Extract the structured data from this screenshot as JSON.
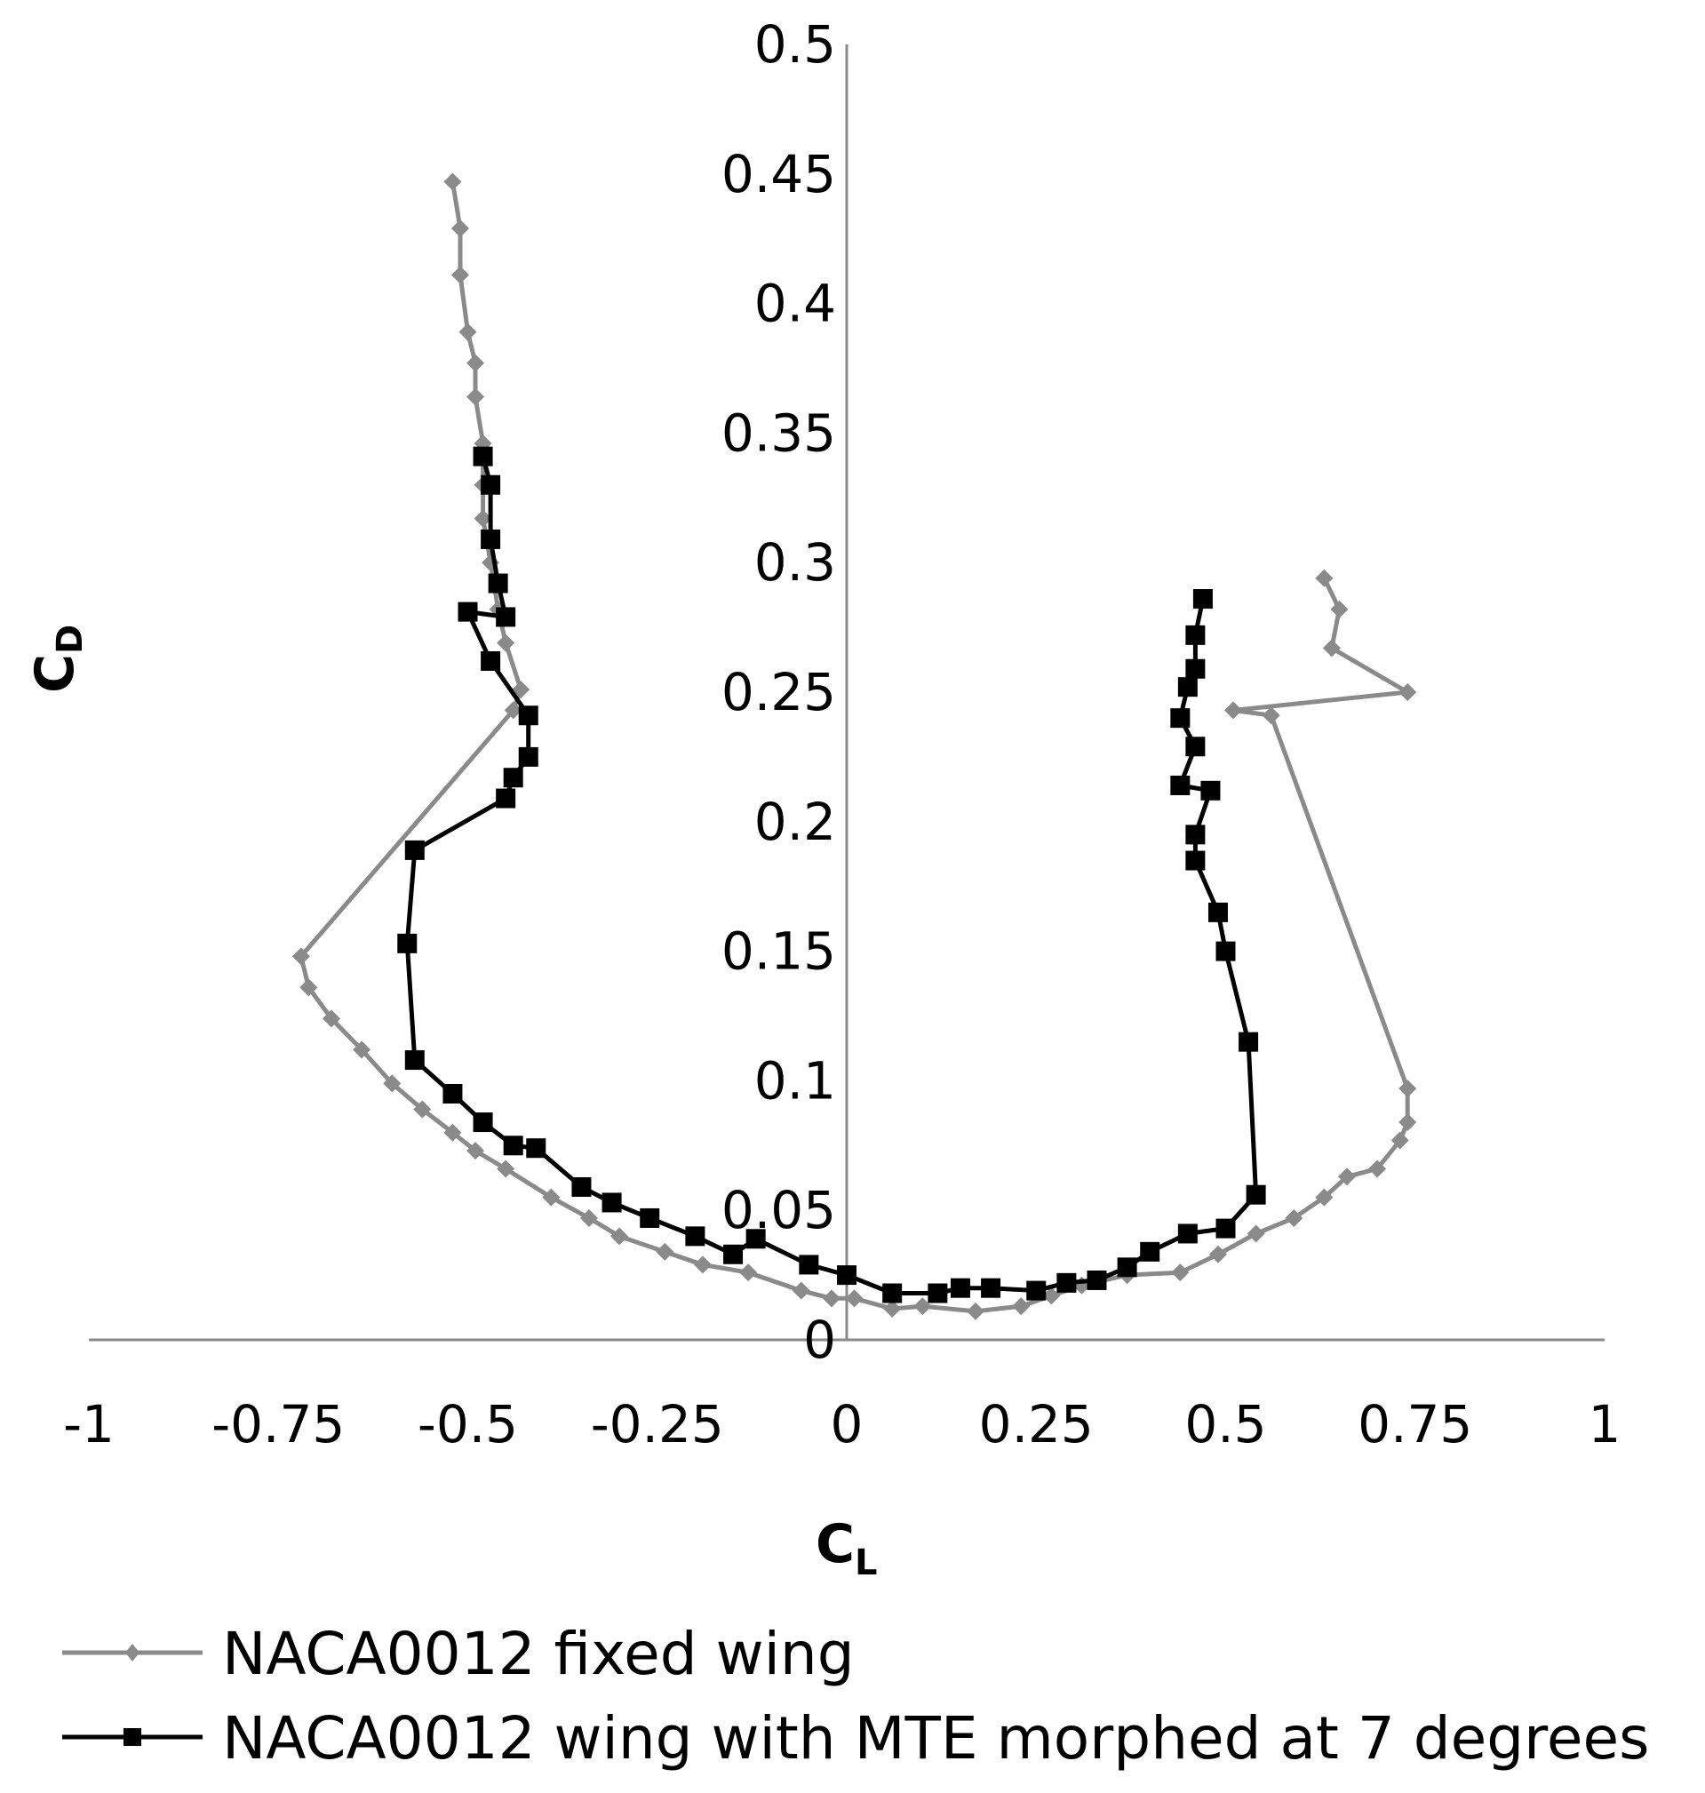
{
  "chart_data": {
    "type": "scatter",
    "title": "",
    "xlabel": {
      "main": "C",
      "sub": "L"
    },
    "ylabel": {
      "main": "C",
      "sub": "D"
    },
    "xlim": [
      -1,
      1
    ],
    "ylim": [
      0,
      0.5
    ],
    "x_ticks": [
      -1,
      -0.75,
      -0.5,
      -0.25,
      0,
      0.25,
      0.5,
      0.75,
      1
    ],
    "x_tick_labels": [
      "-1",
      "-0.75",
      "-0.5",
      "-0.25",
      "0",
      "0.25",
      "0.5",
      "0.75",
      "1"
    ],
    "y_ticks": [
      0,
      0.05,
      0.1,
      0.15,
      0.2,
      0.25,
      0.3,
      0.35,
      0.4,
      0.45,
      0.5
    ],
    "y_tick_labels": [
      "0",
      "0.05",
      "0.1",
      "0.15",
      "0.2",
      "0.25",
      "0.3",
      "0.35",
      "0.4",
      "0.45",
      "0.5"
    ],
    "grid": false,
    "legend_position": "bottom",
    "series": [
      {
        "name": "NACA0012 fixed wing",
        "color": "#8a8a8a",
        "marker": "diamond",
        "points": [
          [
            -0.52,
            0.447
          ],
          [
            -0.51,
            0.429
          ],
          [
            -0.51,
            0.411
          ],
          [
            -0.5,
            0.389
          ],
          [
            -0.49,
            0.377
          ],
          [
            -0.49,
            0.364
          ],
          [
            -0.48,
            0.346
          ],
          [
            -0.48,
            0.33
          ],
          [
            -0.48,
            0.317
          ],
          [
            -0.47,
            0.3
          ],
          [
            -0.46,
            0.282
          ],
          [
            -0.45,
            0.269
          ],
          [
            -0.43,
            0.251
          ],
          [
            -0.44,
            0.243
          ],
          [
            -0.72,
            0.148
          ],
          [
            -0.71,
            0.136
          ],
          [
            -0.68,
            0.124
          ],
          [
            -0.64,
            0.112
          ],
          [
            -0.6,
            0.099
          ],
          [
            -0.56,
            0.089
          ],
          [
            -0.52,
            0.08
          ],
          [
            -0.49,
            0.073
          ],
          [
            -0.45,
            0.066
          ],
          [
            -0.39,
            0.055
          ],
          [
            -0.34,
            0.047
          ],
          [
            -0.3,
            0.04
          ],
          [
            -0.24,
            0.034
          ],
          [
            -0.19,
            0.029
          ],
          [
            -0.13,
            0.026
          ],
          [
            -0.06,
            0.019
          ],
          [
            -0.02,
            0.016
          ],
          [
            0.01,
            0.016
          ],
          [
            0.06,
            0.012
          ],
          [
            0.1,
            0.013
          ],
          [
            0.17,
            0.011
          ],
          [
            0.23,
            0.013
          ],
          [
            0.27,
            0.017
          ],
          [
            0.31,
            0.021
          ],
          [
            0.37,
            0.025
          ],
          [
            0.44,
            0.026
          ],
          [
            0.49,
            0.033
          ],
          [
            0.54,
            0.041
          ],
          [
            0.59,
            0.047
          ],
          [
            0.63,
            0.055
          ],
          [
            0.66,
            0.063
          ],
          [
            0.7,
            0.066
          ],
          [
            0.73,
            0.077
          ],
          [
            0.74,
            0.084
          ],
          [
            0.74,
            0.097
          ],
          [
            0.56,
            0.241
          ],
          [
            0.51,
            0.243
          ],
          [
            0.74,
            0.25
          ],
          [
            0.64,
            0.267
          ],
          [
            0.65,
            0.282
          ],
          [
            0.63,
            0.294
          ]
        ]
      },
      {
        "name": "NACA0012 wing with MTE morphed at 7 degrees",
        "color": "#000000",
        "marker": "square",
        "points": [
          [
            -0.48,
            0.341
          ],
          [
            -0.47,
            0.33
          ],
          [
            -0.47,
            0.309
          ],
          [
            -0.46,
            0.292
          ],
          [
            -0.45,
            0.279
          ],
          [
            -0.5,
            0.281
          ],
          [
            -0.47,
            0.262
          ],
          [
            -0.42,
            0.241
          ],
          [
            -0.42,
            0.225
          ],
          [
            -0.44,
            0.217
          ],
          [
            -0.45,
            0.209
          ],
          [
            -0.57,
            0.189
          ],
          [
            -0.58,
            0.153
          ],
          [
            -0.57,
            0.108
          ],
          [
            -0.52,
            0.095
          ],
          [
            -0.48,
            0.084
          ],
          [
            -0.44,
            0.075
          ],
          [
            -0.41,
            0.074
          ],
          [
            -0.35,
            0.059
          ],
          [
            -0.31,
            0.053
          ],
          [
            -0.26,
            0.047
          ],
          [
            -0.2,
            0.04
          ],
          [
            -0.15,
            0.033
          ],
          [
            -0.12,
            0.039
          ],
          [
            -0.05,
            0.029
          ],
          [
            0.0,
            0.025
          ],
          [
            0.06,
            0.018
          ],
          [
            0.12,
            0.018
          ],
          [
            0.15,
            0.02
          ],
          [
            0.19,
            0.02
          ],
          [
            0.25,
            0.019
          ],
          [
            0.29,
            0.022
          ],
          [
            0.33,
            0.023
          ],
          [
            0.37,
            0.028
          ],
          [
            0.4,
            0.034
          ],
          [
            0.45,
            0.041
          ],
          [
            0.5,
            0.043
          ],
          [
            0.54,
            0.056
          ],
          [
            0.53,
            0.115
          ],
          [
            0.5,
            0.15
          ],
          [
            0.49,
            0.165
          ],
          [
            0.46,
            0.185
          ],
          [
            0.46,
            0.195
          ],
          [
            0.48,
            0.212
          ],
          [
            0.44,
            0.214
          ],
          [
            0.46,
            0.229
          ],
          [
            0.44,
            0.24
          ],
          [
            0.45,
            0.252
          ],
          [
            0.46,
            0.259
          ],
          [
            0.46,
            0.272
          ],
          [
            0.47,
            0.286
          ]
        ]
      }
    ]
  }
}
